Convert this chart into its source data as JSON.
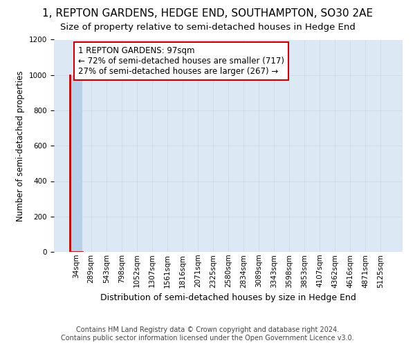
{
  "title": "1, REPTON GARDENS, HEDGE END, SOUTHAMPTON, SO30 2AE",
  "subtitle": "Size of property relative to semi-detached houses in Hedge End",
  "xlabel": "Distribution of semi-detached houses by size in Hedge End",
  "ylabel": "Number of semi-detached properties",
  "footer": "Contains HM Land Registry data © Crown copyright and database right 2024.\nContains public sector information licensed under the Open Government Licence v3.0.",
  "categories": [
    "34sqm",
    "289sqm",
    "543sqm",
    "798sqm",
    "1052sqm",
    "1307sqm",
    "1561sqm",
    "1816sqm",
    "2071sqm",
    "2325sqm",
    "2580sqm",
    "2834sqm",
    "3089sqm",
    "3343sqm",
    "3598sqm",
    "3853sqm",
    "4107sqm",
    "4362sqm",
    "4616sqm",
    "4871sqm",
    "5125sqm"
  ],
  "values": [
    1000,
    0,
    0,
    0,
    0,
    0,
    0,
    0,
    0,
    0,
    0,
    0,
    0,
    0,
    0,
    0,
    0,
    0,
    0,
    0,
    0
  ],
  "bar_color": "#b8d0e8",
  "property_line_color": "#c00000",
  "property_bar_index": 0,
  "ylim": [
    0,
    1200
  ],
  "yticks": [
    0,
    200,
    400,
    600,
    800,
    1000,
    1200
  ],
  "grid_color": "#c8d8e8",
  "bg_color": "#dce9f5",
  "annotation_text": "1 REPTON GARDENS: 97sqm\n← 72% of semi-detached houses are smaller (717)\n27% of semi-detached houses are larger (267) →",
  "annotation_box_facecolor": "#ffffff",
  "annotation_box_edgecolor": "#c00000",
  "title_fontsize": 11,
  "subtitle_fontsize": 9.5,
  "footer_fontsize": 7,
  "ylabel_fontsize": 8.5,
  "xlabel_fontsize": 9,
  "tick_fontsize": 7.5,
  "annotation_fontsize": 8.5
}
